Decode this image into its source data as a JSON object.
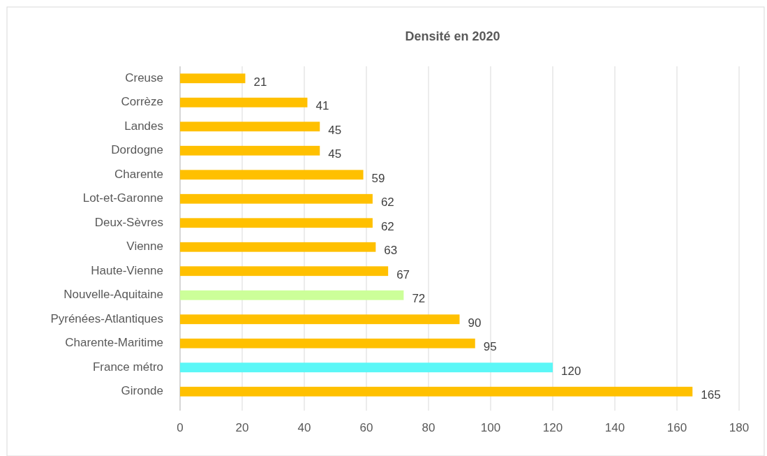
{
  "chart_data": {
    "type": "bar",
    "orientation": "horizontal",
    "title": "Densité en 2020",
    "categories": [
      "Creuse",
      "Corrèze",
      "Landes",
      "Dordogne",
      "Charente",
      "Lot-et-Garonne",
      "Deux-Sèvres",
      "Vienne",
      "Haute-Vienne",
      "Nouvelle-Aquitaine",
      "Pyrénées-Atlantiques",
      "Charente-Maritime",
      "France métro",
      "Gironde"
    ],
    "values": [
      21,
      41,
      45,
      45,
      59,
      62,
      62,
      63,
      67,
      72,
      90,
      95,
      120,
      165
    ],
    "colors": [
      "#ffc000",
      "#ffc000",
      "#ffc000",
      "#ffc000",
      "#ffc000",
      "#ffc000",
      "#ffc000",
      "#ffc000",
      "#ffc000",
      "#ccff99",
      "#ffc000",
      "#ffc000",
      "#5bf7f7",
      "#ffc000"
    ],
    "xlim": [
      0,
      180
    ],
    "xticks": [
      0,
      20,
      40,
      60,
      80,
      100,
      120,
      140,
      160,
      180
    ],
    "grid": "x",
    "data_labels": true
  }
}
